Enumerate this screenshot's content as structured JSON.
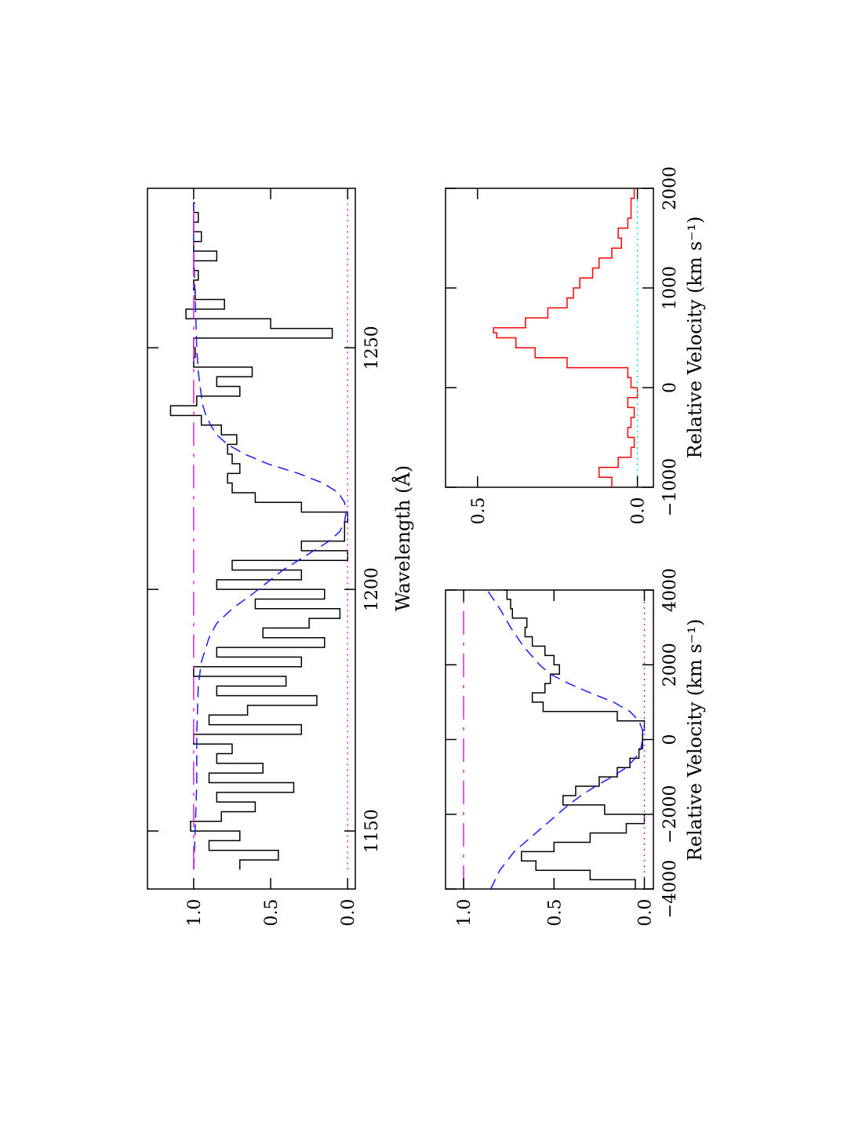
{
  "colors": {
    "spectrum": "#000000",
    "fit": "#1a1aff",
    "continuum": "#e020e0",
    "zero": "#e020e0",
    "residual": "#ff0000",
    "residual_zero": "#00e0e0"
  },
  "chart_data": [
    {
      "type": "line",
      "panel": "top",
      "xlabel": "Wavelength (Å)",
      "ylabel": "",
      "xlim": [
        1138,
        1283
      ],
      "ylim": [
        -0.05,
        1.3
      ],
      "x_ticks": [
        1150,
        1200,
        1250
      ],
      "x_tick_labels": [
        "1150",
        "1200",
        "1250"
      ],
      "y_ticks": [
        0,
        0.5,
        1.0
      ],
      "y_tick_labels": [
        "0.0",
        "0.5",
        "1.0"
      ],
      "series": [
        {
          "style": "step-solid",
          "color": "#000000",
          "x": [
            1142,
            1144,
            1146,
            1148,
            1150,
            1152,
            1154,
            1156,
            1158,
            1160,
            1162,
            1164,
            1166,
            1168,
            1170,
            1172,
            1174,
            1176,
            1178,
            1180,
            1182,
            1184,
            1186,
            1188,
            1190,
            1192,
            1194,
            1196,
            1198,
            1200,
            1202,
            1204,
            1206,
            1208,
            1210,
            1212,
            1214,
            1216,
            1218,
            1220,
            1222,
            1224,
            1226,
            1228,
            1230,
            1232,
            1234,
            1236,
            1238,
            1240,
            1242,
            1244,
            1246,
            1248,
            1250,
            1252,
            1254,
            1256,
            1258,
            1260,
            1262,
            1264,
            1266,
            1268,
            1270,
            1272,
            1274,
            1276,
            1278,
            1280
          ],
          "y": [
            0.7,
            0.45,
            0.9,
            0.7,
            1.02,
            0.82,
            0.6,
            0.85,
            0.35,
            0.9,
            0.55,
            0.85,
            0.75,
            1.0,
            0.3,
            0.9,
            0.65,
            0.2,
            0.85,
            0.4,
            1.0,
            0.3,
            0.85,
            0.15,
            0.55,
            0.25,
            0.05,
            0.6,
            0.15,
            0.85,
            0.3,
            0.75,
            0.0,
            0.3,
            0.02,
            0.02,
            0.0,
            0.3,
            0.6,
            0.75,
            0.78,
            0.7,
            0.75,
            0.78,
            0.72,
            0.82,
            0.95,
            1.15,
            0.98,
            0.7,
            0.85,
            0.62,
            1.0,
            0.99,
            1.0,
            0.1,
            0.5,
            1.05,
            0.8,
            0.99,
            1.0,
            0.97,
            1.0,
            0.85,
            1.0,
            0.95,
            1.0,
            0.97,
            1.0,
            0.99
          ]
        },
        {
          "name": "",
          "style": "dashed",
          "color": "#1a1aff",
          "x": [
            1142,
            1150,
            1160,
            1170,
            1180,
            1185,
            1190,
            1193,
            1196,
            1199,
            1202,
            1204,
            1206,
            1208,
            1210,
            1212,
            1214,
            1216,
            1218,
            1220,
            1222,
            1224,
            1226,
            1228,
            1230,
            1232,
            1234,
            1236,
            1238,
            1240,
            1245,
            1250,
            1260,
            1270,
            1280
          ],
          "y": [
            1.0,
            0.99,
            0.98,
            0.98,
            0.97,
            0.95,
            0.9,
            0.85,
            0.75,
            0.62,
            0.5,
            0.42,
            0.32,
            0.22,
            0.12,
            0.05,
            0.02,
            0.01,
            0.02,
            0.06,
            0.16,
            0.32,
            0.52,
            0.67,
            0.78,
            0.85,
            0.89,
            0.92,
            0.94,
            0.95,
            0.97,
            0.98,
            0.99,
            1.0,
            1.0
          ]
        },
        {
          "style": "long-dash",
          "color": "#e020e0",
          "x": [
            1142,
            1280
          ],
          "y": [
            1.0,
            1.0
          ]
        },
        {
          "style": "dotted",
          "color": "#e020e0",
          "x": [
            1142,
            1280
          ],
          "y": [
            0.0,
            0.0
          ]
        }
      ]
    },
    {
      "type": "line",
      "panel": "bottom-left",
      "xlabel": "Relative Velocity (km s⁻¹)",
      "ylabel": "",
      "xlim": [
        -4000,
        4000
      ],
      "ylim": [
        -0.05,
        1.1
      ],
      "x_ticks": [
        -4000,
        -2000,
        0,
        2000,
        4000
      ],
      "x_tick_labels": [
        "−4000",
        "−2000",
        "0",
        "2000",
        "4000"
      ],
      "y_ticks": [
        0,
        0.5,
        1.0
      ],
      "y_tick_labels": [
        "0.0",
        "0.5",
        "1.0"
      ],
      "series": [
        {
          "style": "step-solid",
          "color": "#000000",
          "x": [
            -4000,
            -3750,
            -3500,
            -3250,
            -3000,
            -2750,
            -2500,
            -2250,
            -2000,
            -1750,
            -1500,
            -1250,
            -1000,
            -750,
            -500,
            -250,
            0,
            250,
            500,
            750,
            1000,
            1250,
            1500,
            1750,
            2000,
            2250,
            2500,
            2750,
            3000,
            3250,
            3500,
            3750,
            4000
          ],
          "y": [
            0.05,
            0.3,
            0.6,
            0.68,
            0.5,
            0.3,
            0.1,
            0.0,
            0.22,
            0.45,
            0.38,
            0.25,
            0.15,
            0.08,
            0.03,
            0.01,
            0.01,
            0.0,
            0.15,
            0.56,
            0.62,
            0.55,
            0.52,
            0.47,
            0.5,
            0.55,
            0.62,
            0.66,
            0.65,
            0.73,
            0.74,
            0.76,
            0.78
          ]
        },
        {
          "style": "dashed",
          "color": "#1a1aff",
          "x": [
            -4000,
            -3500,
            -3000,
            -2500,
            -2000,
            -1750,
            -1500,
            -1250,
            -1000,
            -750,
            -500,
            -250,
            0,
            250,
            500,
            750,
            1000,
            1250,
            1500,
            1750,
            2000,
            2500,
            3000,
            3500,
            4000
          ],
          "y": [
            0.85,
            0.8,
            0.72,
            0.6,
            0.48,
            0.42,
            0.35,
            0.27,
            0.18,
            0.1,
            0.05,
            0.02,
            0.01,
            0.01,
            0.03,
            0.08,
            0.17,
            0.3,
            0.42,
            0.52,
            0.58,
            0.67,
            0.74,
            0.8,
            0.87
          ]
        },
        {
          "style": "long-dash",
          "color": "#e020e0",
          "x": [
            -4000,
            4000
          ],
          "y": [
            1.0,
            1.0
          ]
        },
        {
          "style": "dotted",
          "color": "#e020e0",
          "x": [
            -4000,
            4000
          ],
          "y": [
            0.0,
            0.0
          ]
        }
      ]
    },
    {
      "type": "line",
      "panel": "bottom-right",
      "xlabel": "Relative Velocity (km s⁻¹)",
      "ylabel": "",
      "xlim": [
        -1000,
        2000
      ],
      "ylim": [
        -0.05,
        0.6
      ],
      "x_ticks": [
        -1000,
        0,
        1000,
        2000
      ],
      "x_tick_labels": [
        "−1000",
        "0",
        "1000",
        "2000"
      ],
      "y_ticks": [
        0,
        0.5
      ],
      "y_tick_labels": [
        "0.0",
        "0.5"
      ],
      "series": [
        {
          "style": "step-solid",
          "color": "#ff0000",
          "x": [
            -1000,
            -900,
            -800,
            -700,
            -600,
            -500,
            -400,
            -300,
            -200,
            -100,
            0,
            100,
            200,
            300,
            400,
            500,
            550,
            600,
            700,
            800,
            900,
            1000,
            1100,
            1200,
            1300,
            1400,
            1500,
            1600,
            1700,
            1800,
            1900,
            2000
          ],
          "y": [
            0.08,
            0.12,
            0.06,
            0.02,
            0.01,
            0.03,
            0.02,
            0.01,
            0.03,
            0.0,
            0.02,
            0.03,
            0.22,
            0.32,
            0.38,
            0.44,
            0.45,
            0.35,
            0.28,
            0.22,
            0.2,
            0.18,
            0.14,
            0.12,
            0.08,
            0.05,
            0.06,
            0.03,
            0.02,
            0.02,
            0.01,
            0.01
          ]
        },
        {
          "style": "dotted",
          "color": "#00e0e0",
          "x": [
            -1000,
            2000
          ],
          "y": [
            0.0,
            0.0
          ]
        }
      ]
    }
  ]
}
